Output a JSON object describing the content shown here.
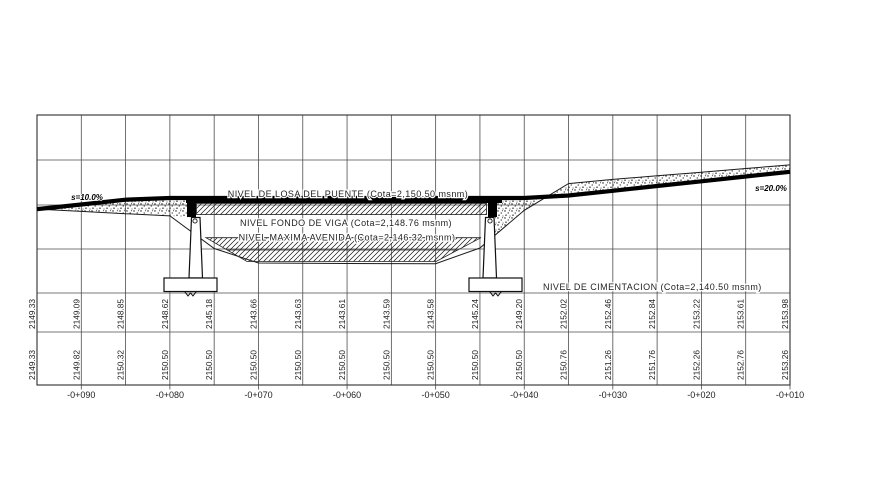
{
  "drawing": {
    "labels": {
      "losa": "NIVEL DE LOSA DEL PUENTE (Cota=2,150.50 msnm)",
      "viga": "NIVEL FONDO DE VIGA (Cota=2,148.76 msnm)",
      "avenida": "NIVEL MAXIMA AVENIDA (Cota=2,146.32 msnm)",
      "cimentacion": "NIVEL DE CIMENTACION (Cota=2,140.50 msnm)"
    },
    "annotations": {
      "slope_left": "s=10.0%",
      "slope_right": "s=20.0%"
    }
  },
  "chart_data": {
    "type": "line",
    "title": "",
    "xlabel": "",
    "ylabel": "",
    "stations": [
      "-0+090",
      "-0+080",
      "-0+070",
      "-0+060",
      "-0+050",
      "-0+040",
      "-0+030",
      "-0+020",
      "-0+010"
    ],
    "series": [
      {
        "name": "terrain-elevation-row",
        "values": [
          "2149.33",
          "2149.09",
          "2148.85",
          "2148.62",
          "2145.18",
          "2143.66",
          "2143.63",
          "2143.61",
          "2143.59",
          "2143.58",
          "2145.24",
          "2149.20",
          "2152.02",
          "2152.46",
          "2152.84",
          "2153.22",
          "2153.61",
          "2153.98"
        ]
      },
      {
        "name": "grade-elevation-row",
        "values": [
          "2149.33",
          "2149.82",
          "2150.32",
          "2150.50",
          "2150.50",
          "2150.50",
          "2150.50",
          "2150.50",
          "2150.50",
          "2150.50",
          "2150.50",
          "2150.50",
          "2150.76",
          "2151.26",
          "2151.76",
          "2152.26",
          "2152.76",
          "2153.26"
        ]
      }
    ],
    "levels": {
      "deck": 2150.5,
      "beam_bottom": 2148.76,
      "max_flood": 2146.32,
      "foundation": 2140.5
    },
    "grid": "on",
    "values_per_station": 2
  }
}
